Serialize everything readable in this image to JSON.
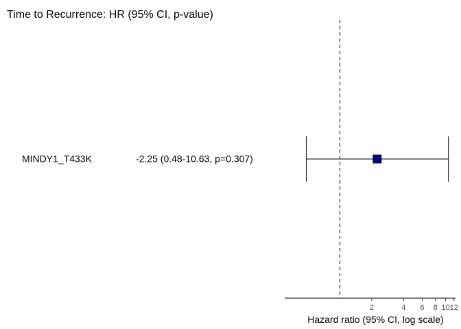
{
  "chart_data": {
    "type": "forest",
    "title": "Time to Recurrence: HR (95% CI, p-value)",
    "xlabel": "Hazard ratio (95% CI, log scale)",
    "x_scale": "log",
    "reference_line": 1,
    "xticks": [
      2,
      4,
      6,
      8,
      10,
      12
    ],
    "xlim": [
      0.3,
      12.4
    ],
    "rows": [
      {
        "label": "MINDY1_T433K",
        "summary": "-2.25 (0.48-10.63, p=0.307)",
        "hr": 2.25,
        "ci_low": 0.48,
        "ci_high": 10.63,
        "p": 0.307
      }
    ],
    "colors": {
      "point": "#00008b",
      "lines": "#000000",
      "tick_text": "#4d4d4d"
    }
  }
}
